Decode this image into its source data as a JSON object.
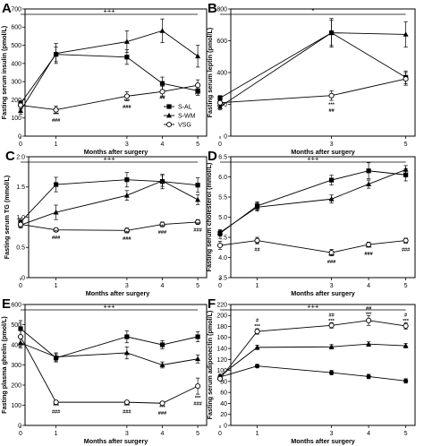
{
  "chart_data": [
    {
      "type": "line",
      "panel": "A",
      "ylabel": "Fasting serum insulin (pmol/L)",
      "xlabel": "Months after surgery",
      "ylim": [
        0,
        700
      ],
      "yticks": [
        0,
        100,
        200,
        300,
        400,
        500,
        600,
        700
      ],
      "xticks": [
        0,
        1,
        3,
        4,
        5
      ],
      "significance": "+++",
      "legend_position": "lower-right",
      "series": [
        {
          "name": "S-AL",
          "marker": "square",
          "x": [
            0,
            1,
            3,
            4,
            5
          ],
          "y": [
            180,
            450,
            435,
            290,
            250
          ],
          "err": [
            15,
            40,
            40,
            35,
            25
          ]
        },
        {
          "name": "S-WM",
          "marker": "triangle",
          "x": [
            0,
            1,
            3,
            4,
            5
          ],
          "y": [
            140,
            455,
            520,
            580,
            440
          ],
          "err": [
            20,
            55,
            60,
            65,
            60
          ]
        },
        {
          "name": "VSG",
          "marker": "circle",
          "x": [
            0,
            1,
            3,
            4,
            5
          ],
          "y": [
            170,
            145,
            220,
            245,
            280
          ],
          "err": [
            20,
            20,
            25,
            30,
            30
          ]
        }
      ],
      "annotations": [
        {
          "x": 1,
          "y": 110,
          "lines": [
            "***",
            "###"
          ]
        },
        {
          "x": 3,
          "y": 185,
          "lines": [
            "***",
            "###"
          ]
        },
        {
          "x": 4,
          "y": 205,
          "lines": [
            "##"
          ]
        },
        {
          "x": 5,
          "y": 230,
          "lines": [
            "##"
          ]
        }
      ]
    },
    {
      "type": "line",
      "panel": "B",
      "ylabel": "Fasting serum leptin (pmol/L)",
      "xlabel": "Months after surgery",
      "ylim": [
        0,
        800
      ],
      "yticks": [
        0,
        200,
        400,
        600,
        800
      ],
      "xticks": [
        0,
        3,
        5
      ],
      "significance": "*",
      "series": [
        {
          "name": "S-AL",
          "marker": "square",
          "x": [
            0,
            3,
            5
          ],
          "y": [
            240,
            650,
            370
          ],
          "err": [
            15,
            80,
            40
          ]
        },
        {
          "name": "S-WM",
          "marker": "triangle",
          "x": [
            0,
            3,
            5
          ],
          "y": [
            185,
            650,
            640
          ],
          "err": [
            20,
            90,
            80
          ]
        },
        {
          "name": "VSG",
          "marker": "circle",
          "x": [
            0,
            3,
            5
          ],
          "y": [
            210,
            255,
            360
          ],
          "err": [
            15,
            30,
            40
          ]
        }
      ],
      "annotations": [
        {
          "x": 3,
          "y": 190,
          "lines": [
            "***",
            "##"
          ]
        }
      ]
    },
    {
      "type": "line",
      "panel": "C",
      "ylabel": "Fasting serum TG (mmol/L)",
      "xlabel": "Months after surgery",
      "ylim": [
        0,
        2.0
      ],
      "yticks": [
        0,
        0.5,
        1.0,
        1.5,
        2.0
      ],
      "ytick_labels": [
        "0",
        "0.5",
        "1.0",
        "1.5",
        "2.0"
      ],
      "xticks": [
        0,
        1,
        3,
        4,
        5
      ],
      "significance": "+++",
      "series": [
        {
          "name": "S-AL",
          "marker": "square",
          "x": [
            0,
            1,
            3,
            4,
            5
          ],
          "y": [
            0.92,
            1.54,
            1.62,
            1.59,
            1.53
          ],
          "err": [
            0.06,
            0.12,
            0.12,
            0.12,
            0.12
          ]
        },
        {
          "name": "S-WM",
          "marker": "triangle",
          "x": [
            0,
            1,
            3,
            4,
            5
          ],
          "y": [
            0.87,
            1.08,
            1.36,
            1.6,
            1.29
          ],
          "err": [
            0.05,
            0.12,
            0.08,
            0.09,
            0.08
          ]
        },
        {
          "name": "VSG",
          "marker": "circle",
          "x": [
            0,
            1,
            3,
            4,
            5
          ],
          "y": [
            0.88,
            0.79,
            0.78,
            0.88,
            0.92
          ],
          "err": [
            0.04,
            0.03,
            0.04,
            0.04,
            0.04
          ]
        }
      ],
      "annotations": [
        {
          "x": 1,
          "y": 0.73,
          "lines": [
            "***",
            "###"
          ]
        },
        {
          "x": 3,
          "y": 0.72,
          "lines": [
            "***",
            "###"
          ]
        },
        {
          "x": 4,
          "y": 0.82,
          "lines": [
            "***",
            "###"
          ]
        },
        {
          "x": 5,
          "y": 0.86,
          "lines": [
            "***",
            "###"
          ]
        }
      ]
    },
    {
      "type": "line",
      "panel": "D",
      "ylabel": "Fasting serum cholesterol (mmol/L)",
      "xlabel": "Months after surgery",
      "ylim": [
        3.5,
        6.5
      ],
      "yticks": [
        3.5,
        4.0,
        4.5,
        5.0,
        5.5,
        6.0,
        6.5
      ],
      "ytick_labels": [
        "3.5",
        "4.0",
        "4.5",
        "5.0",
        "5.5",
        "6.0",
        "6.5"
      ],
      "xticks": [
        0,
        1,
        3,
        4,
        5
      ],
      "significance": "+++",
      "series": [
        {
          "name": "S-AL",
          "marker": "square",
          "x": [
            0,
            1,
            3,
            4,
            5
          ],
          "y": [
            4.6,
            5.28,
            5.92,
            6.15,
            6.05
          ],
          "err": [
            0.07,
            0.1,
            0.12,
            0.2,
            0.15
          ]
        },
        {
          "name": "S-WM",
          "marker": "triangle",
          "x": [
            0,
            1,
            3,
            4,
            5
          ],
          "y": [
            4.62,
            5.25,
            5.45,
            5.82,
            6.18
          ],
          "err": [
            0.07,
            0.1,
            0.1,
            0.1,
            0.1
          ]
        },
        {
          "name": "VSG",
          "marker": "circle",
          "x": [
            0,
            1,
            3,
            4,
            5
          ],
          "y": [
            4.3,
            4.42,
            4.12,
            4.32,
            4.42
          ],
          "err": [
            0.1,
            0.08,
            0.08,
            0.06,
            0.06
          ]
        }
      ],
      "annotations": [
        {
          "x": 1,
          "y": 4.3,
          "lines": [
            "**",
            "##"
          ]
        },
        {
          "x": 3,
          "y": 4.0,
          "lines": [
            "***",
            "###"
          ]
        },
        {
          "x": 4,
          "y": 4.2,
          "lines": [
            "***",
            "###"
          ]
        },
        {
          "x": 5,
          "y": 4.3,
          "lines": [
            "**",
            "###"
          ]
        }
      ]
    },
    {
      "type": "line",
      "panel": "E",
      "ylabel": "Fasting plasma ghrelin (pmol/L)",
      "xlabel": "Months after surgery",
      "ylim": [
        0,
        600
      ],
      "yticks": [
        0,
        100,
        200,
        300,
        400,
        500,
        600
      ],
      "xticks": [
        0,
        1,
        3,
        4,
        5
      ],
      "significance": "+++",
      "series": [
        {
          "name": "S-AL",
          "marker": "square",
          "x": [
            0,
            1,
            3,
            4,
            5
          ],
          "y": [
            480,
            335,
            440,
            400,
            440
          ],
          "err": [
            40,
            20,
            30,
            20,
            25
          ]
        },
        {
          "name": "S-WM",
          "marker": "triangle",
          "x": [
            0,
            1,
            3,
            4,
            5
          ],
          "y": [
            410,
            340,
            360,
            300,
            330
          ],
          "err": [
            25,
            20,
            30,
            15,
            20
          ]
        },
        {
          "name": "VSG",
          "marker": "circle",
          "x": [
            0,
            1,
            3,
            4,
            5
          ],
          "y": [
            440,
            115,
            115,
            110,
            195
          ],
          "err": [
            45,
            8,
            8,
            8,
            40
          ]
        }
      ],
      "annotations": [
        {
          "x": 1,
          "y": 88,
          "lines": [
            "***",
            "###"
          ]
        },
        {
          "x": 3,
          "y": 88,
          "lines": [
            "***",
            "###"
          ]
        },
        {
          "x": 4,
          "y": 82,
          "lines": [
            "***",
            "###"
          ]
        },
        {
          "x": 5,
          "y": 130,
          "lines": [
            "***",
            "###"
          ]
        }
      ]
    },
    {
      "type": "line",
      "panel": "F",
      "ylabel": "Fasting serum adiponectin (pmol/L)",
      "xlabel": "Months after surgery",
      "ylim": [
        0,
        220
      ],
      "yticks": [
        0,
        20,
        40,
        60,
        80,
        100,
        120,
        140,
        160,
        180,
        200,
        220
      ],
      "xticks": [
        0,
        1,
        3,
        4,
        5
      ],
      "significance": "+++",
      "series": [
        {
          "name": "S-AL",
          "marker": "circle-filled",
          "x": [
            0,
            1,
            3,
            4,
            5
          ],
          "y": [
            88,
            108,
            96,
            89,
            81
          ],
          "err": [
            3,
            3,
            4,
            4,
            4
          ]
        },
        {
          "name": "S-WM",
          "marker": "triangle",
          "x": [
            0,
            1,
            3,
            4,
            5
          ],
          "y": [
            90,
            142,
            143,
            148,
            145
          ],
          "err": [
            3,
            4,
            4,
            4,
            4
          ]
        },
        {
          "name": "VSG",
          "marker": "circle",
          "x": [
            0,
            1,
            3,
            4,
            5
          ],
          "y": [
            85,
            171,
            182,
            191,
            181
          ],
          "err": [
            3,
            5,
            5,
            9,
            6
          ]
        }
      ],
      "annotations": [
        {
          "x": 1,
          "y": 188,
          "lines": [
            "#",
            "***"
          ]
        },
        {
          "x": 3,
          "y": 198,
          "lines": [
            "##",
            "***"
          ]
        },
        {
          "x": 4,
          "y": 210,
          "lines": [
            "##",
            "***"
          ]
        },
        {
          "x": 5,
          "y": 198,
          "lines": [
            "#",
            "***"
          ]
        }
      ]
    }
  ]
}
